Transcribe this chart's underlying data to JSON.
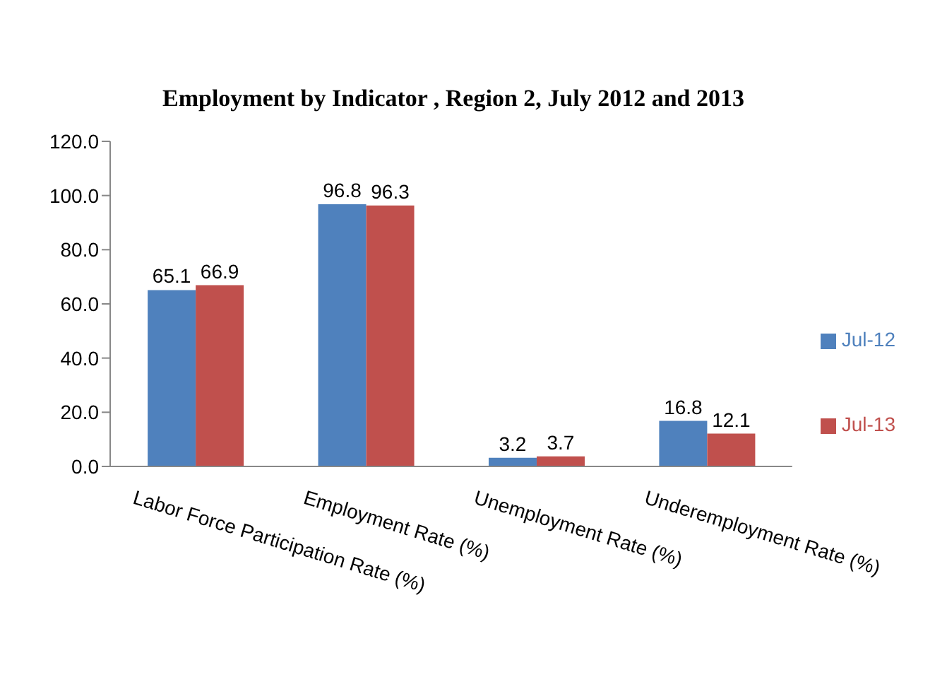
{
  "chart_data": {
    "type": "bar",
    "title": "Employment by Indicator , Region 2, July 2012 and 2013",
    "categories": [
      "Labor Force Participation Rate (%)",
      "Employment Rate (%)",
      "Unemployment Rate (%)",
      "Underemployment Rate (%)"
    ],
    "series": [
      {
        "name": "Jul-12",
        "color": "#4f81bd",
        "values": [
          65.1,
          96.8,
          3.2,
          16.8
        ]
      },
      {
        "name": "Jul-13",
        "color": "#c0504d",
        "values": [
          66.9,
          96.3,
          3.7,
          12.1
        ]
      }
    ],
    "ylim": [
      0,
      120
    ],
    "yticks": [
      {
        "value": 0,
        "label": "0.0"
      },
      {
        "value": 20,
        "label": "20.0"
      },
      {
        "value": 40,
        "label": "40.0"
      },
      {
        "value": 60,
        "label": "60.0"
      },
      {
        "value": 80,
        "label": "80.0"
      },
      {
        "value": 100,
        "label": "100.0"
      },
      {
        "value": 120,
        "label": "120.0"
      }
    ],
    "grid": false,
    "legend": "right",
    "data_labels": true
  }
}
